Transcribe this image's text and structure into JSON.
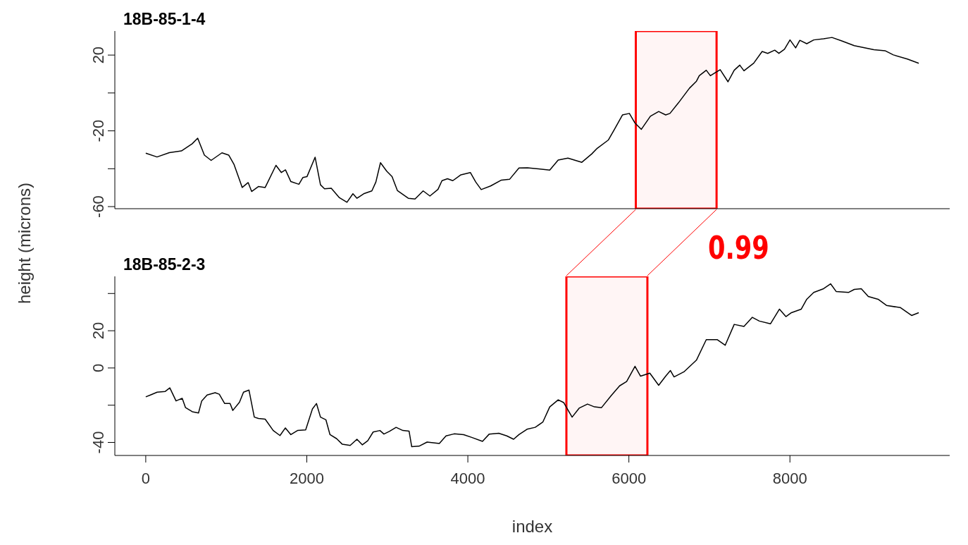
{
  "chart_data": [
    {
      "type": "line",
      "title": "18B-85-1-4",
      "ylabel": "height (microns)",
      "tick_labels": "y",
      "xlim": [
        -384,
        9984
      ],
      "ylim": [
        -61.1,
        32.7
      ],
      "yticks": [
        20,
        {
          "value": 0,
          "label": null
        },
        -20,
        {
          "value": -40,
          "label": null
        },
        -60
      ],
      "bands": [
        {
          "axis": "x",
          "from": 6086,
          "to": 7089,
          "color": "#ff0000"
        }
      ],
      "series": [
        {
          "color": "#000000",
          "x": [
            0,
            140,
            293,
            443,
            577,
            645,
            728,
            812,
            946,
            1030,
            1097,
            1198,
            1272,
            1315,
            1399,
            1483,
            1617,
            1684,
            1735,
            1802,
            1902,
            1952,
            2002,
            2103,
            2170,
            2220,
            2304,
            2405,
            2499,
            2573,
            2623,
            2707,
            2808,
            2858,
            2915,
            2992,
            3059,
            3126,
            3260,
            3344,
            3445,
            3529,
            3629,
            3679,
            3747,
            3813,
            3914,
            4031,
            4098,
            4166,
            4283,
            4417,
            4518,
            4635,
            4740,
            5017,
            5122,
            5243,
            5416,
            5538,
            5607,
            5746,
            5815,
            5920,
            6006,
            6076,
            6155,
            6267,
            6370,
            6457,
            6510,
            6614,
            6752,
            6839,
            6874,
            6961,
            7012,
            7134,
            7231,
            7308,
            7377,
            7429,
            7550,
            7655,
            7724,
            7811,
            7863,
            7932,
            8001,
            8071,
            8123,
            8209,
            8296,
            8418,
            8522,
            8643,
            8799,
            9043,
            9181,
            9285,
            9459,
            9600
          ],
          "values": [
            -31.8,
            -33.8,
            -31.5,
            -30.6,
            -26.8,
            -23.9,
            -32.8,
            -35.6,
            -31.6,
            -32.8,
            -37.8,
            -49.9,
            -47.3,
            -52,
            -49.4,
            -49.9,
            -38.2,
            -42,
            -40.6,
            -46.8,
            -48.2,
            -44.6,
            -44.2,
            -33.9,
            -48.5,
            -50.6,
            -50.3,
            -55.3,
            -57.7,
            -53.2,
            -55.6,
            -53.2,
            -51.7,
            -47,
            -36.8,
            -41.3,
            -44.2,
            -51.6,
            -55.6,
            -56,
            -51.7,
            -54.4,
            -50.9,
            -46.3,
            -45.3,
            -46.3,
            -43.2,
            -42,
            -47,
            -51,
            -49.1,
            -46,
            -45.6,
            -39.6,
            -39.5,
            -40.7,
            -35.4,
            -34.4,
            -36.6,
            -32.2,
            -29.2,
            -24.8,
            -19.6,
            -11.6,
            -10.8,
            -15.9,
            -19.2,
            -12.3,
            -9.8,
            -11.6,
            -10.8,
            -5.3,
            2.5,
            6.2,
            9.1,
            12,
            9.1,
            12.3,
            5.9,
            12,
            14.7,
            11.7,
            15.7,
            21.9,
            20.9,
            22.6,
            20.9,
            23.1,
            28,
            23.8,
            27.8,
            26,
            28,
            28.6,
            29.3,
            27.5,
            25,
            22.8,
            22.3,
            20.1,
            17.9,
            15.7
          ]
        }
      ]
    },
    {
      "type": "line",
      "title": "18B-85-2-3",
      "xlabel": "index",
      "annotations": [
        "0.99"
      ],
      "xlim": [
        -384,
        9984
      ],
      "xticks": [
        0,
        2000,
        4000,
        6000,
        8000
      ],
      "ylim": [
        -47,
        49.2
      ],
      "yticks": [
        {
          "value": 40,
          "label": null
        },
        20,
        0,
        {
          "value": -20,
          "label": null
        },
        -40
      ],
      "bands": [
        {
          "axis": "x",
          "from": 5224,
          "to": 6230,
          "color": "#ff0000"
        }
      ],
      "series": [
        {
          "color": "#000000",
          "x": [
            0,
            58,
            141,
            242,
            299,
            376,
            453,
            494,
            578,
            655,
            695,
            762,
            862,
            913,
            980,
            1047,
            1081,
            1164,
            1214,
            1282,
            1348,
            1399,
            1483,
            1583,
            1667,
            1734,
            1802,
            1885,
            1986,
            2070,
            2120,
            2170,
            2237,
            2288,
            2371,
            2439,
            2539,
            2623,
            2690,
            2757,
            2824,
            2908,
            2958,
            3025,
            3109,
            3193,
            3270,
            3303,
            3394,
            3494,
            3646,
            3729,
            3830,
            3948,
            4048,
            4182,
            4266,
            4384,
            4484,
            4568,
            4635,
            4735,
            4836,
            4931,
            5017,
            5122,
            5191,
            5295,
            5382,
            5486,
            5573,
            5660,
            5781,
            5885,
            5972,
            6076,
            6145,
            6260,
            6370,
            6457,
            6516,
            6561,
            6683,
            6839,
            6961,
            7099,
            7196,
            7308,
            7429,
            7533,
            7620,
            7758,
            7870,
            7950,
            8019,
            8141,
            8209,
            8296,
            8418,
            8505,
            8574,
            8730,
            8799,
            8886,
            8973,
            9095,
            9199,
            9373,
            9511,
            9600
          ],
          "values": [
            -15.5,
            -14.5,
            -13,
            -12.6,
            -10.7,
            -17.7,
            -16.3,
            -21.3,
            -23.5,
            -24.2,
            -17.7,
            -14.5,
            -13.3,
            -14.1,
            -19.1,
            -19.1,
            -22.8,
            -18.4,
            -13,
            -11.9,
            -26.4,
            -27.1,
            -27.5,
            -33.6,
            -36.3,
            -32.2,
            -35.8,
            -33.6,
            -33.3,
            -22,
            -19.1,
            -26.4,
            -27.8,
            -35.8,
            -38,
            -40.9,
            -41.6,
            -38.3,
            -41.3,
            -39.1,
            -34.4,
            -33.6,
            -35.5,
            -34.1,
            -31.9,
            -33.6,
            -33.9,
            -42.3,
            -42,
            -39.8,
            -40.6,
            -36.5,
            -35.4,
            -35.8,
            -37.3,
            -39.4,
            -35.5,
            -35.1,
            -36.5,
            -38.3,
            -35.8,
            -32.9,
            -31.9,
            -29.1,
            -20.9,
            -17.1,
            -18.6,
            -26.4,
            -21.6,
            -19.4,
            -20.9,
            -21.3,
            -14.8,
            -9.6,
            -7.3,
            0.9,
            -4.4,
            -2.8,
            -9.3,
            -4.4,
            -1.4,
            -4.8,
            -2.1,
            4.2,
            15.2,
            15.2,
            12.2,
            23.4,
            22.3,
            27.2,
            25.2,
            23.7,
            31.6,
            27.6,
            29.7,
            31.6,
            36.9,
            40.6,
            42.6,
            45.2,
            41.1,
            40.6,
            42.2,
            42.6,
            38.4,
            36.9,
            33.6,
            32.4,
            28.2,
            29.7
          ]
        }
      ]
    }
  ]
}
